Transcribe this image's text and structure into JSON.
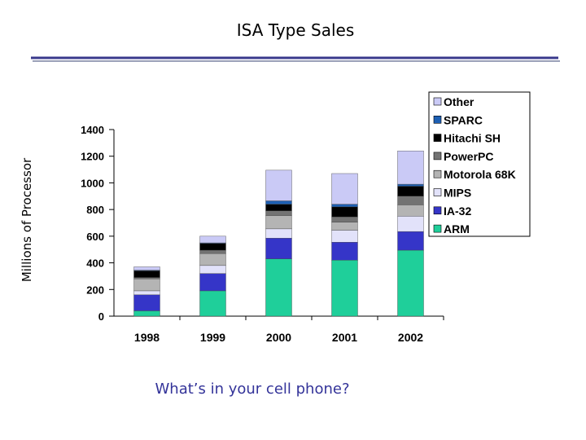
{
  "chart_data": {
    "type": "stacked_bar",
    "title": "ISA Type Sales",
    "y_label": "Millions of Processor",
    "annotation": "What’s in your cell phone?",
    "categories": [
      "1998",
      "1999",
      "2000",
      "2001",
      "2002"
    ],
    "series": [
      {
        "name": "ARM",
        "color": "#1fcf9a",
        "values": [
          40,
          190,
          430,
          420,
          495
        ]
      },
      {
        "name": "IA-32",
        "color": "#3535c8",
        "values": [
          120,
          130,
          155,
          135,
          140
        ]
      },
      {
        "name": "MIPS",
        "color": "#e2e2fa",
        "values": [
          30,
          60,
          70,
          90,
          115
        ]
      },
      {
        "name": "Motorola 68K",
        "color": "#b4b4b4",
        "values": [
          90,
          90,
          100,
          60,
          85
        ]
      },
      {
        "name": "PowerPC",
        "color": "#737373",
        "values": [
          10,
          25,
          35,
          40,
          65
        ]
      },
      {
        "name": "Hitachi SH",
        "color": "#000000",
        "values": [
          50,
          50,
          50,
          75,
          75
        ]
      },
      {
        "name": "SPARC",
        "color": "#1d5fb3",
        "values": [
          5,
          5,
          25,
          20,
          15
        ]
      },
      {
        "name": "Other",
        "color": "#cacaf6",
        "values": [
          25,
          50,
          230,
          230,
          250
        ]
      }
    ],
    "ylim": [
      0,
      1400
    ],
    "yticks": [
      0,
      200,
      400,
      600,
      800,
      1000,
      1200,
      1400
    ],
    "legend": "right"
  }
}
